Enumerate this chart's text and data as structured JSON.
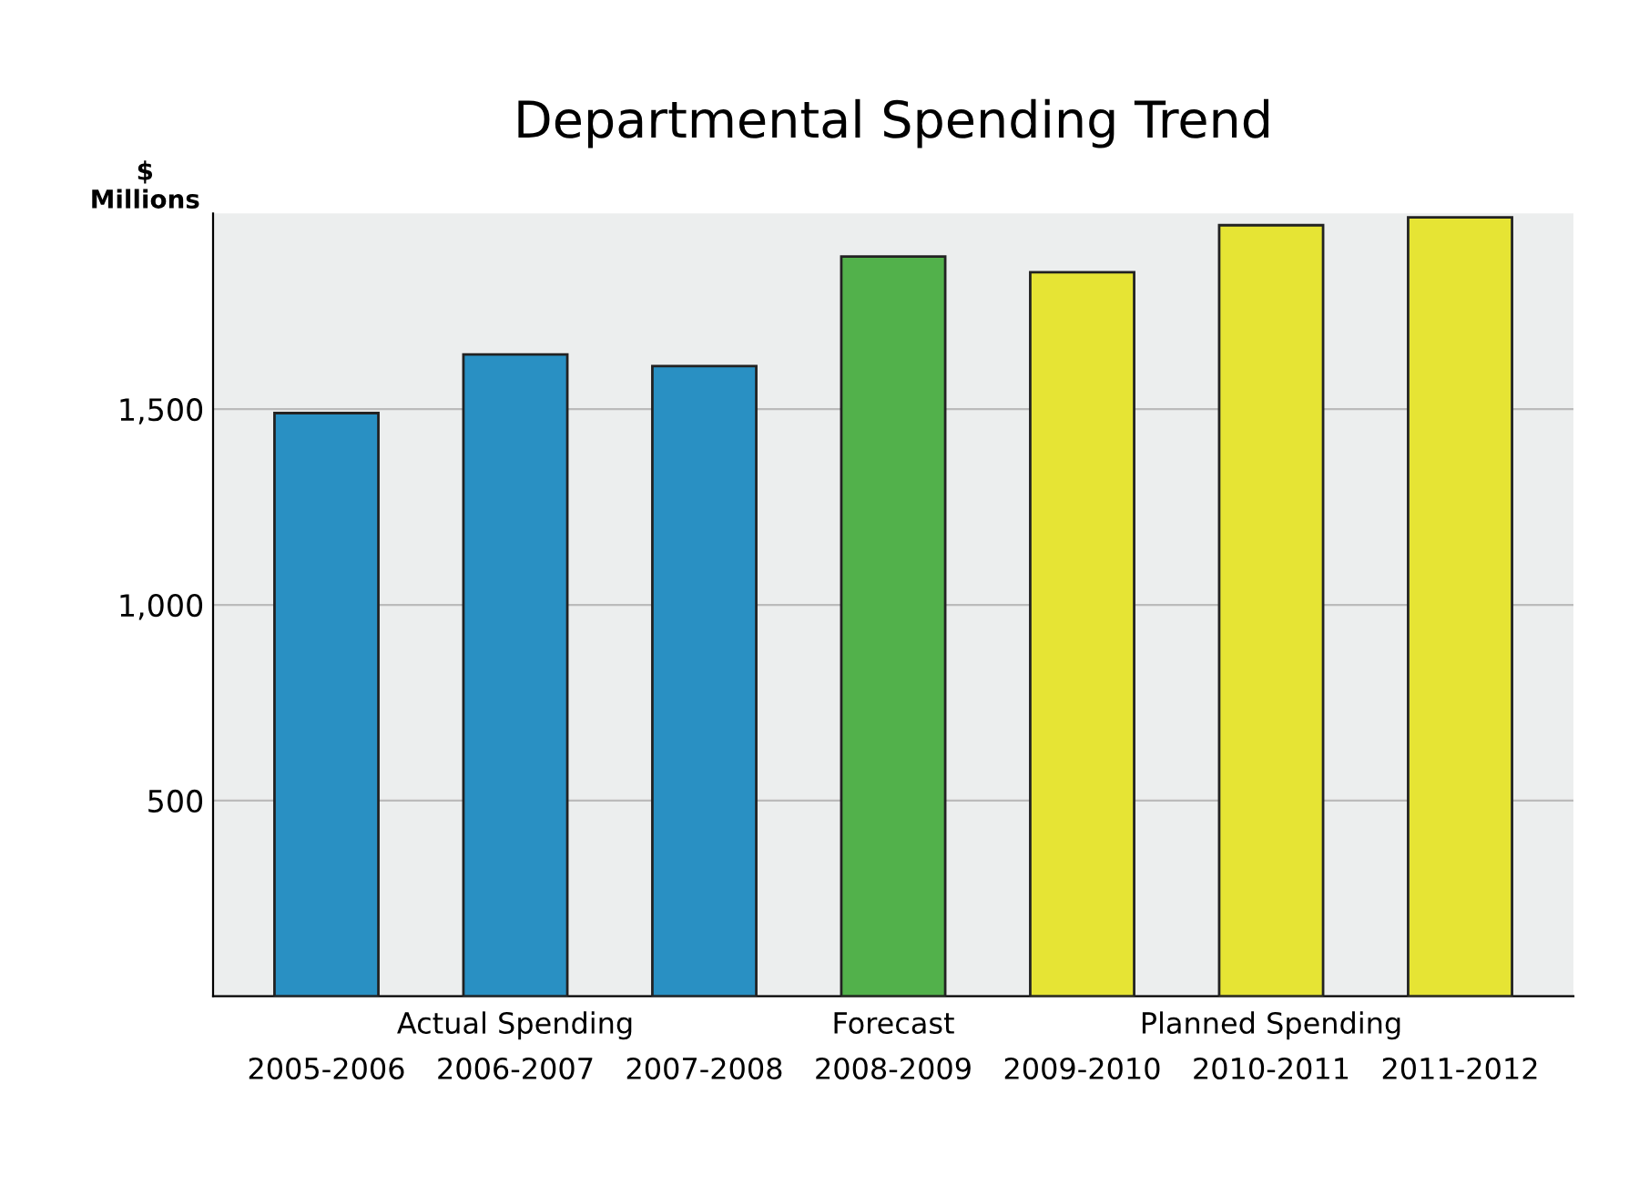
{
  "chart_data": {
    "type": "bar",
    "title": "Departmental Spending Trend",
    "ylabel": "$\nMillions",
    "categories": [
      "2005-2006",
      "2006-2007",
      "2007-2008",
      "2008-2009",
      "2009-2010",
      "2010-2011",
      "2011-2012"
    ],
    "values": [
      1490,
      1640,
      1610,
      1890,
      1850,
      1970,
      1990
    ],
    "colors": [
      "#2990c3",
      "#2990c3",
      "#2990c3",
      "#52b14b",
      "#e6e434",
      "#e6e434",
      "#e6e434"
    ],
    "annotations": [
      "Actual Spending",
      "Forecast",
      "Planned Spending"
    ],
    "ylim": [
      0,
      2000
    ],
    "yticks": [
      {
        "value": 500,
        "label": "500"
      },
      {
        "value": 1000,
        "label": "1,000"
      },
      {
        "value": 1500,
        "label": "1,500"
      }
    ],
    "grid": "y",
    "legend": false
  }
}
